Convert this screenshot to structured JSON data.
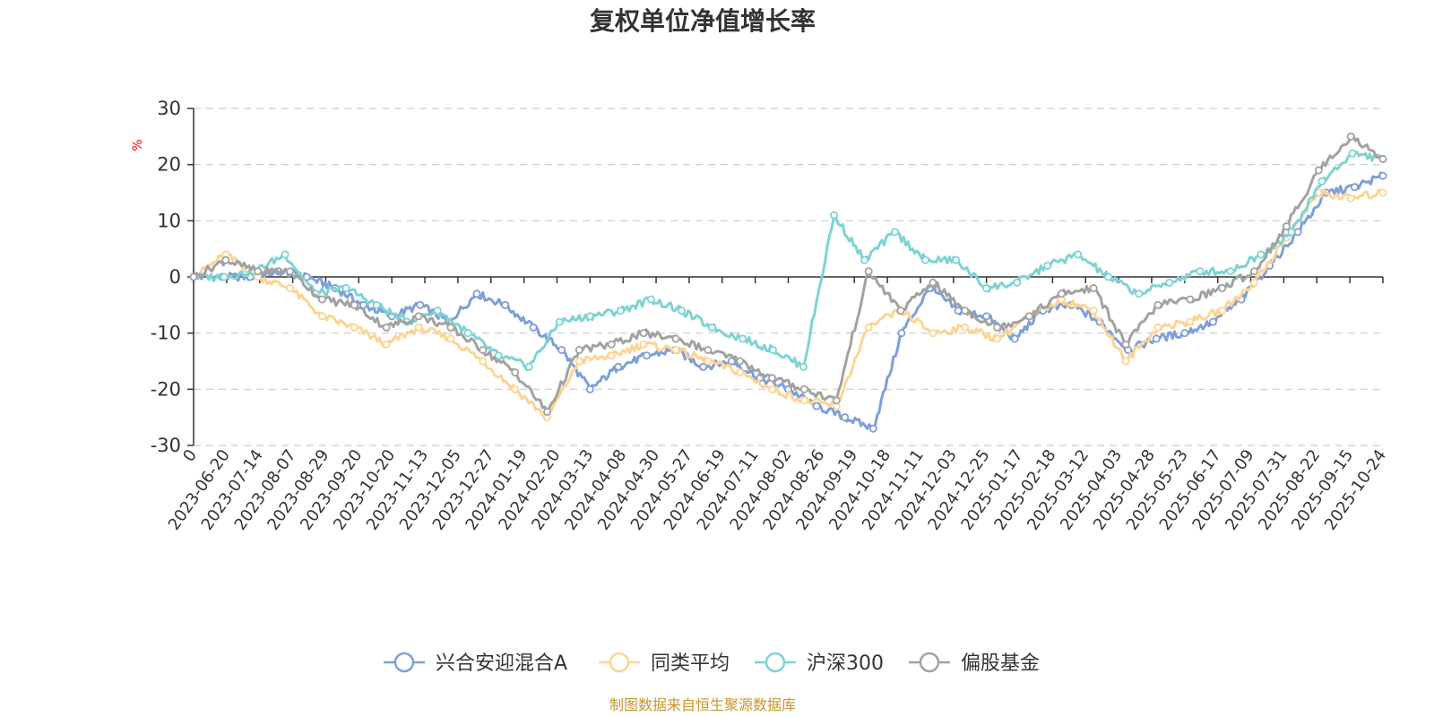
{
  "chart_data": {
    "type": "line",
    "title": "复权单位净值增长率",
    "ylabel": "%",
    "xlabel": "",
    "ylim": [
      -30,
      30
    ],
    "yticks": [
      "30",
      "20",
      "10",
      "0",
      "-10",
      "-20",
      "-30"
    ],
    "grid": true,
    "legend_position": "bottom",
    "x_tick_labels": [
      "0",
      "2023-06-20",
      "2023-07-14",
      "2023-08-07",
      "2023-08-29",
      "2023-09-20",
      "2023-10-20",
      "2023-11-13",
      "2023-12-05",
      "2023-12-27",
      "2024-01-19",
      "2024-02-20",
      "2024-03-13",
      "2024-04-08",
      "2024-04-30",
      "2024-05-27",
      "2024-06-19",
      "2024-07-11",
      "2024-08-02",
      "2024-08-26",
      "2024-09-19",
      "2024-10-18",
      "2024-11-11",
      "2024-12-03",
      "2024-12-25",
      "2025-01-17",
      "2025-02-18",
      "2025-03-12",
      "2025-04-03",
      "2025-04-28",
      "2025-05-23",
      "2025-06-17",
      "2025-07-09",
      "2025-07-31",
      "2025-08-22",
      "2025-09-15",
      "2025-10-24"
    ],
    "series": [
      {
        "name": "兴合安迎混合A",
        "color": "#7f9fd8",
        "values": [
          0,
          0,
          0,
          1,
          0,
          -2,
          -5,
          -7,
          -5,
          -8,
          -3,
          -5,
          -9,
          -13,
          -20,
          -16,
          -14,
          -13,
          -16,
          -15,
          -18,
          -20,
          -23,
          -25,
          -27,
          -10,
          -2,
          -6,
          -7,
          -11,
          -6,
          -5,
          -8,
          -13,
          -11,
          -10,
          -8,
          -4,
          2,
          8,
          15,
          16,
          18
        ]
      },
      {
        "name": "同类平均",
        "color": "#fdd494",
        "values": [
          0,
          4,
          0,
          -2,
          -7,
          -9,
          -12,
          -9,
          -11,
          -15,
          -20,
          -25,
          -15,
          -14,
          -12,
          -13,
          -15,
          -17,
          -20,
          -22,
          -23,
          -9,
          -6,
          -10,
          -9,
          -11,
          -7,
          -4,
          -6,
          -15,
          -9,
          -8,
          -6,
          -1,
          7,
          15,
          14,
          15
        ]
      },
      {
        "name": "沪深300",
        "color": "#7ed3d4",
        "values": [
          0,
          0,
          1,
          4,
          -3,
          -2,
          -5,
          -8,
          -6,
          -10,
          -14,
          -16,
          -8,
          -7,
          -6,
          -4,
          -6,
          -9,
          -11,
          -13,
          -16,
          11,
          3,
          8,
          3,
          3,
          -2,
          -1,
          2,
          4,
          0,
          -3,
          -1,
          1,
          1,
          4,
          8,
          17,
          22,
          21
        ]
      },
      {
        "name": "偏股基金",
        "color": "#a2a2a2",
        "values": [
          0,
          3,
          1,
          1,
          -4,
          -5,
          -9,
          -7,
          -9,
          -13,
          -17,
          -24,
          -13,
          -12,
          -10,
          -11,
          -13,
          -15,
          -18,
          -20,
          -22,
          1,
          -6,
          -1,
          -6,
          -9,
          -7,
          -3,
          -2,
          -12,
          -5,
          -4,
          -2,
          1,
          9,
          19,
          25,
          21
        ]
      }
    ]
  },
  "legend": [
    "兴合安迎混合A",
    "同类平均",
    "沪深300",
    "偏股基金"
  ],
  "source_note": "制图数据来自恒生聚源数据库"
}
